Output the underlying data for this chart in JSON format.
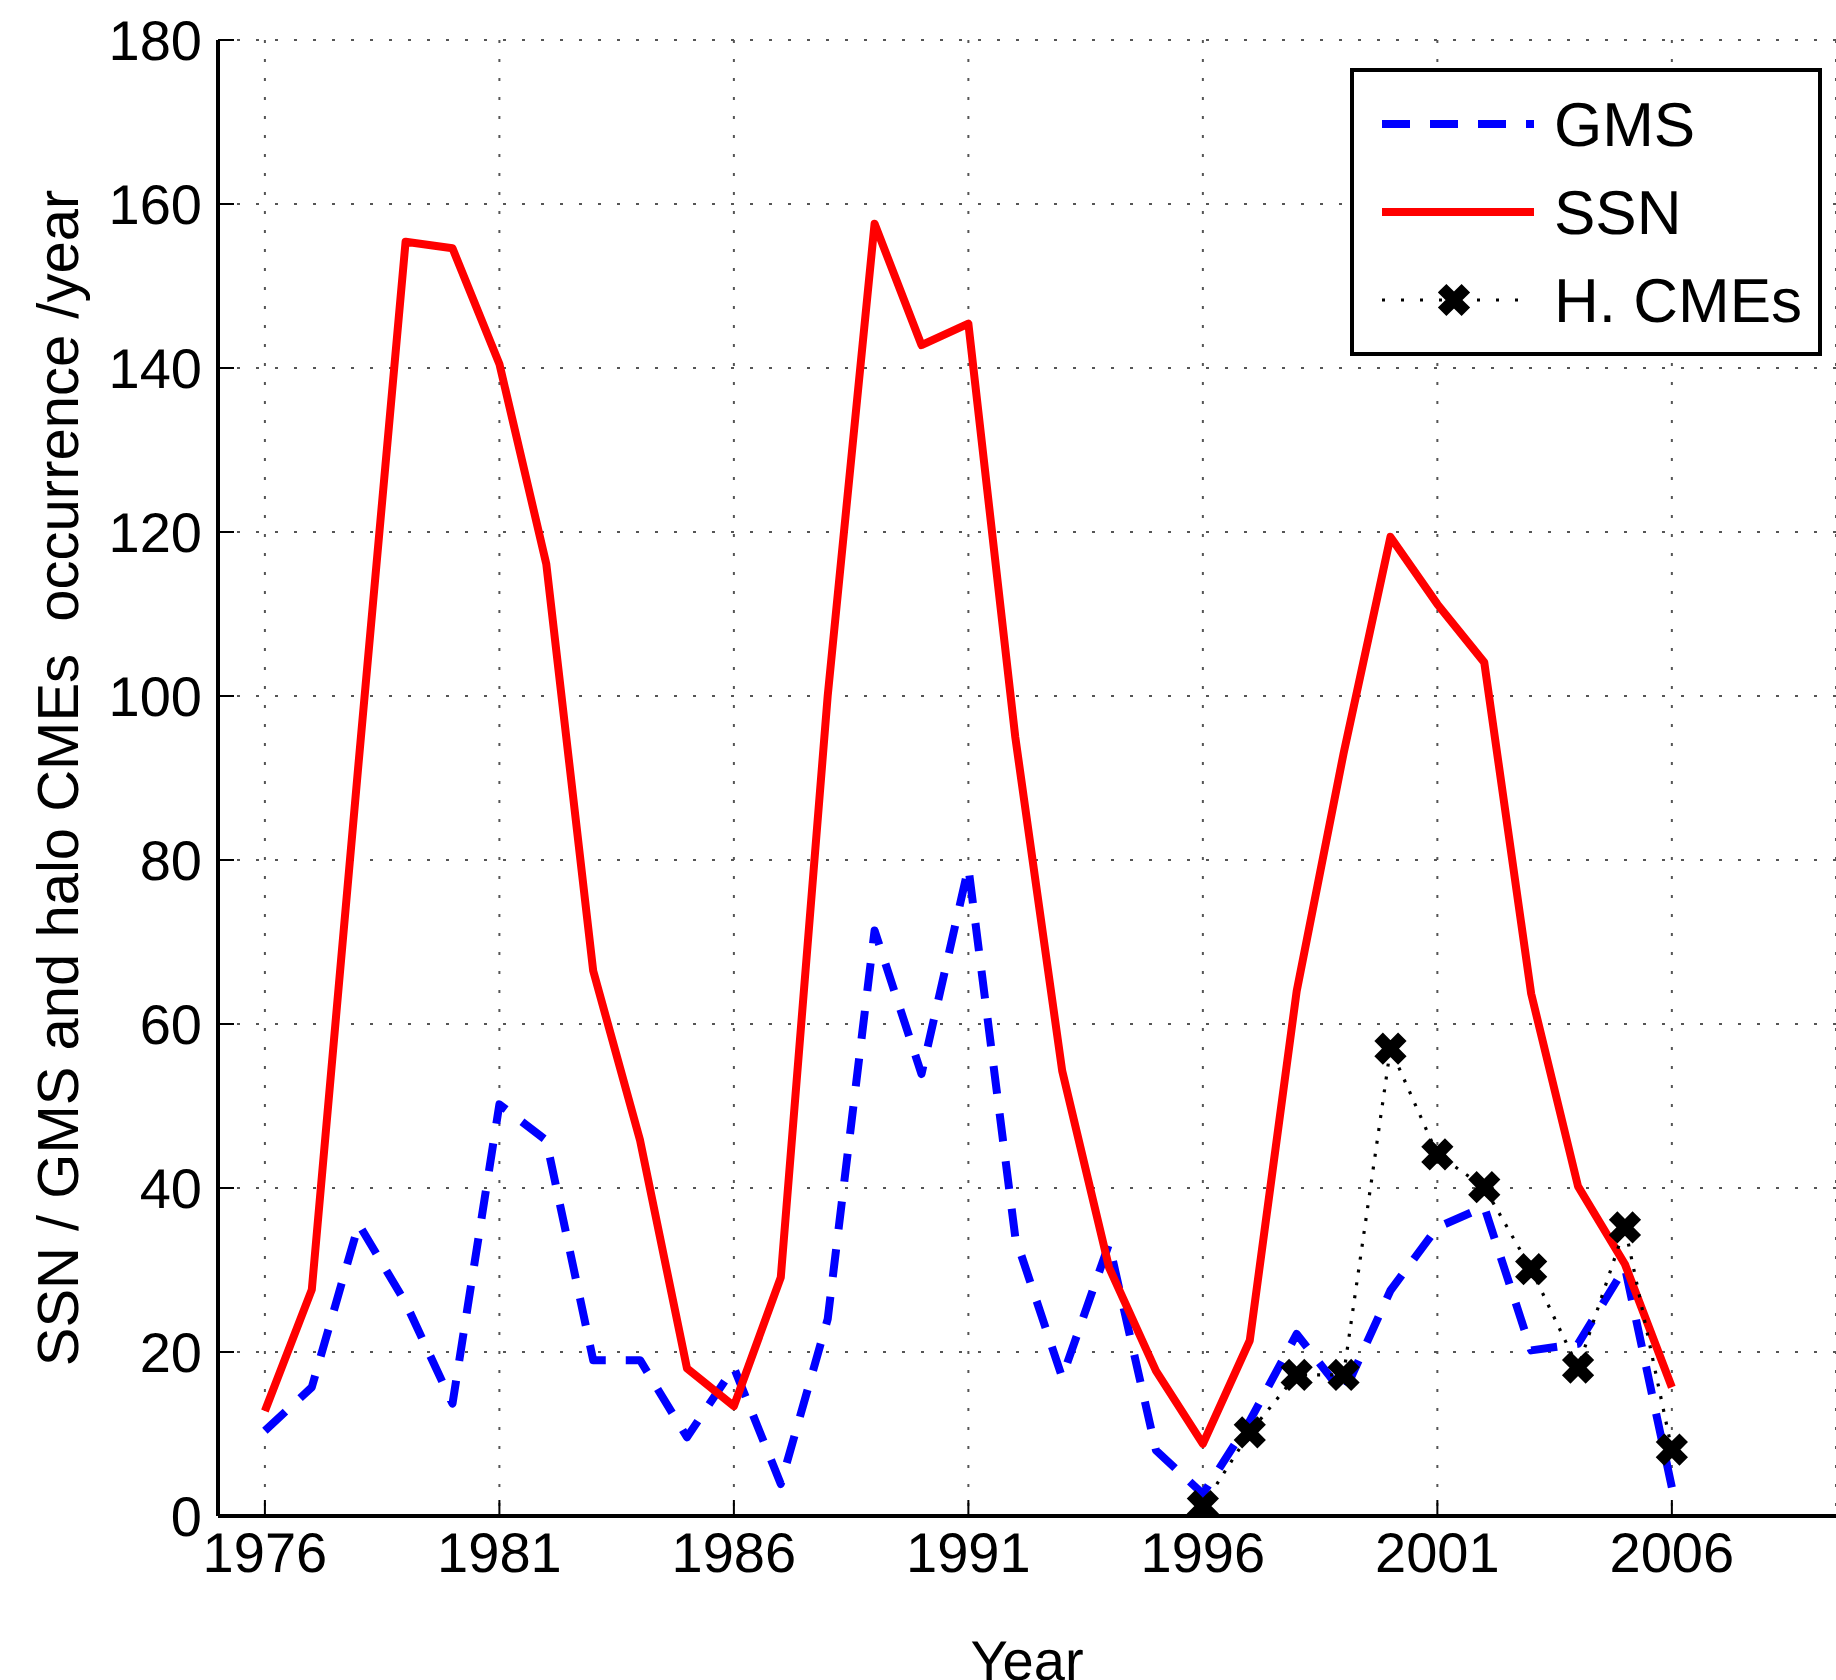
{
  "chart_data": {
    "type": "line",
    "xlabel": "Year",
    "ylabel": "SSN / GMS and halo CMEs  occurrence /year",
    "x": [
      1976,
      1977,
      1978,
      1979,
      1980,
      1981,
      1982,
      1983,
      1984,
      1985,
      1986,
      1987,
      1988,
      1989,
      1990,
      1991,
      1992,
      1993,
      1994,
      1995,
      1996,
      1997,
      1998,
      1999,
      2000,
      2001,
      2002,
      2003,
      2004,
      2005,
      2006
    ],
    "series": [
      {
        "name": "GMS",
        "color": "#0000ff",
        "line_style": "dashed",
        "marker": "none",
        "values": [
          10.4,
          15.7,
          35.6,
          26,
          13.7,
          50.2,
          45.8,
          19,
          19,
          9.6,
          18.1,
          3.9,
          24,
          71.4,
          53.9,
          79.1,
          34,
          16.9,
          33.2,
          8,
          2.7,
          11.6,
          22.2,
          14.9,
          27.5,
          35.2,
          37.7,
          20.2,
          21,
          30.3,
          3.5
        ]
      },
      {
        "name": "SSN",
        "color": "#ff0000",
        "line_style": "solid",
        "marker": "none",
        "values": [
          12.8,
          27.6,
          92,
          155.4,
          154.6,
          140.5,
          116.1,
          66.5,
          45.8,
          18,
          13.4,
          29.1,
          100,
          157.6,
          142.8,
          145.4,
          95,
          54.3,
          30.3,
          17.7,
          8.8,
          21.4,
          64,
          93,
          119.4,
          111.2,
          104.1,
          63.7,
          40.2,
          30.7,
          15.7
        ]
      },
      {
        "name": "H. CMEs",
        "color": "#000000",
        "line_style": "dotted",
        "marker": "cross",
        "x": [
          1996,
          1997,
          1998,
          1999,
          2000,
          2001,
          2002,
          2003,
          2004,
          2005,
          2006
        ],
        "values": [
          1.2,
          10.2,
          17.2,
          17.2,
          57,
          44.1,
          40.1,
          30.1,
          18.1,
          35.2,
          8.1
        ]
      }
    ],
    "xlim": [
      1975,
      2009.5
    ],
    "xticks": [
      1976,
      1981,
      1986,
      1991,
      1996,
      2001,
      2006
    ],
    "ylim": [
      0,
      180
    ],
    "yticks": [
      0,
      20,
      40,
      60,
      80,
      100,
      120,
      140,
      160,
      180
    ],
    "grid": true,
    "legend": "top right"
  }
}
